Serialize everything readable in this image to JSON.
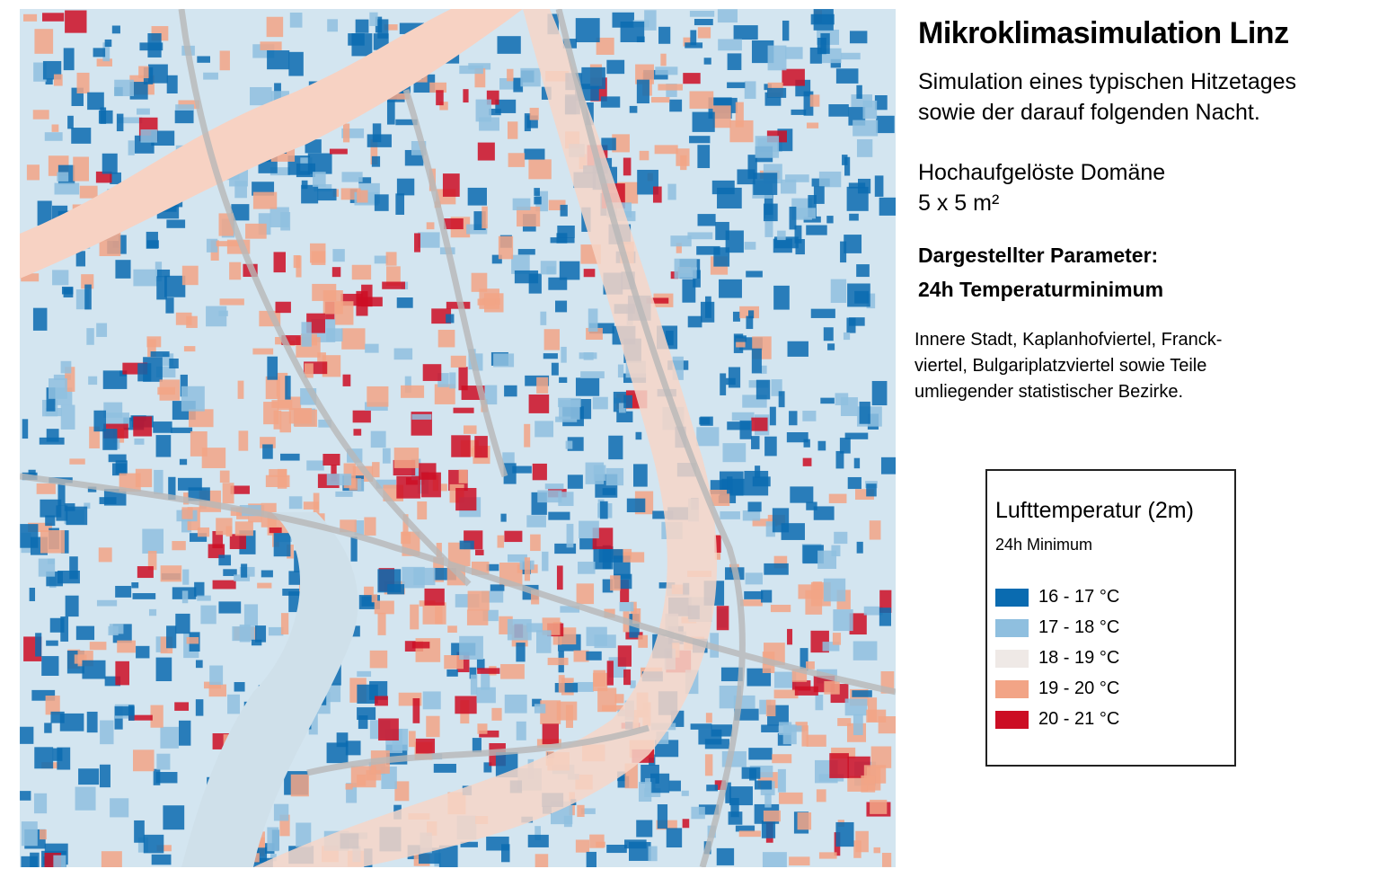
{
  "header": {
    "title": "Mikroklimasimulation Linz",
    "description": [
      "Simulation eines typischen Hitzetages",
      "sowie der darauf folgenden Nacht."
    ],
    "domain": [
      "Hochaufgelöste Domäne",
      "5 x 5 m²"
    ],
    "parameter": [
      "Dargestellter Parameter:",
      "24h Temperaturminimum"
    ],
    "area": [
      "Innere Stadt, Kaplanhofviertel, Franck-",
      "viertel, Bulgariplatzviertel sowie Teile",
      "umliegender statistischer Bezirke."
    ]
  },
  "legend": {
    "title": "Lufttemperatur (2m)",
    "subtitle": "24h Minimum",
    "items": [
      {
        "label": "16 - 17 °C",
        "color": "#0a6bb0"
      },
      {
        "label": "17 - 18 °C",
        "color": "#8fbfdf"
      },
      {
        "label": "18 - 19 °C",
        "color": "#efe9e6"
      },
      {
        "label": "19 - 20 °C",
        "color": "#f2a486"
      },
      {
        "label": "20 - 21 °C",
        "color": "#cc0e24"
      }
    ]
  }
}
